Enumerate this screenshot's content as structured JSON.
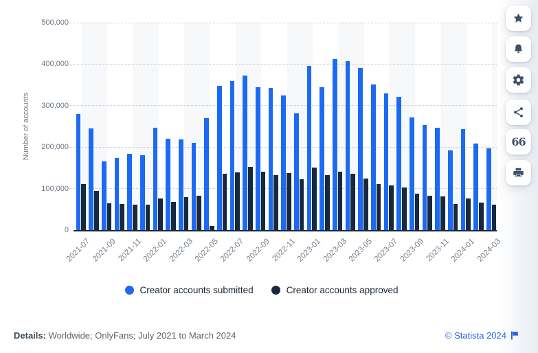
{
  "chart_data": {
    "type": "bar",
    "title": "",
    "ylabel": "Number of accounts",
    "xlabel": "",
    "ylim": [
      0,
      500000
    ],
    "grid": "horizontal-dotted",
    "legend_position": "bottom",
    "yticks": [
      {
        "value": 0,
        "label": "0"
      },
      {
        "value": 100000,
        "label": "100,000"
      },
      {
        "value": 200000,
        "label": "200,000"
      },
      {
        "value": 300000,
        "label": "300,000"
      },
      {
        "value": 400000,
        "label": "400,000"
      },
      {
        "value": 500000,
        "label": "500,000"
      }
    ],
    "categories": [
      "2021-07",
      "2021-08",
      "2021-09",
      "2021-10",
      "2021-11",
      "2021-12",
      "2022-01",
      "2022-02",
      "2022-03",
      "2022-04",
      "2022-05",
      "2022-06",
      "2022-07",
      "2022-08",
      "2022-09",
      "2022-10",
      "2022-11",
      "2022-12",
      "2023-01",
      "2023-02",
      "2023-03",
      "2023-04",
      "2023-05",
      "2023-06",
      "2023-07",
      "2023-08",
      "2023-09",
      "2023-10",
      "2023-11",
      "2023-12",
      "2024-01",
      "2024-02",
      "2024-03"
    ],
    "xtick_labels": [
      "2021-07",
      "2021-09",
      "2021-11",
      "2022-01",
      "2022-03",
      "2022-05",
      "2022-07",
      "2022-09",
      "2022-11",
      "2023-01",
      "2023-03",
      "2023-05",
      "2023-07",
      "2023-09",
      "2023-11",
      "2024-01",
      "2024-03"
    ],
    "series": [
      {
        "name": "Creator accounts submitted",
        "color": "#1d6af2",
        "values": [
          279000,
          245000,
          166000,
          174000,
          183000,
          181000,
          246000,
          221000,
          218000,
          211000,
          270000,
          348000,
          360000,
          373000,
          344000,
          342000,
          324000,
          281000,
          396000,
          345000,
          412000,
          407000,
          390000,
          351000,
          329000,
          321000,
          271000,
          254000,
          247000,
          192000,
          244000,
          209000,
          197000
        ]
      },
      {
        "name": "Creator accounts approved",
        "color": "#16293e",
        "values": [
          111000,
          95000,
          65000,
          63000,
          61000,
          61000,
          77000,
          68000,
          79000,
          82000,
          10000,
          135000,
          139000,
          153000,
          141000,
          133000,
          137000,
          122000,
          151000,
          132000,
          140000,
          136000,
          124000,
          111000,
          108000,
          103000,
          87000,
          82000,
          81000,
          63000,
          77000,
          66000,
          62000
        ]
      }
    ]
  },
  "sidebar": {
    "icons": [
      "star-icon",
      "bell-icon",
      "gear-icon",
      "share-icon",
      "quote-icon",
      "printer-icon"
    ]
  },
  "footer": {
    "details_label": "Details:",
    "details_text": " Worldwide; OnlyFans; July 2021 to March 2024",
    "copyright_text": "© Statista 2024"
  },
  "colors": {
    "submitted": "#1d6af2",
    "approved": "#16293e",
    "link_blue": "#2563eb",
    "axis_text": "#6e7983",
    "baseline": "#16293e"
  }
}
